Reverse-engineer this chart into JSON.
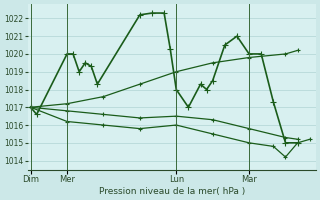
{
  "bg_color": "#cce8e8",
  "plot_bg_color": "#d8f0f0",
  "grid_color": "#b0d4d4",
  "line_color": "#1a5c1a",
  "xlabel": "Pression niveau de la mer( hPa )",
  "ylim": [
    1013.5,
    1022.8
  ],
  "yticks": [
    1014,
    1015,
    1016,
    1017,
    1018,
    1019,
    1020,
    1021,
    1022
  ],
  "day_labels": [
    "Dim",
    "Mer",
    "Lun",
    "Mar"
  ],
  "day_positions": [
    0,
    6,
    24,
    36
  ],
  "xlim": [
    -0.5,
    47
  ],
  "vlines": [
    0,
    6,
    24,
    36
  ],
  "series": [
    {
      "x": [
        0,
        1,
        6,
        7,
        8,
        9,
        10,
        11,
        18,
        20,
        22,
        23,
        24,
        26,
        28,
        29,
        30,
        32,
        34,
        36,
        38,
        40,
        42,
        44
      ],
      "y": [
        1017.0,
        1016.6,
        1020.0,
        1020.0,
        1019.0,
        1019.5,
        1019.3,
        1018.3,
        1022.2,
        1022.3,
        1022.3,
        1020.3,
        1018.0,
        1017.0,
        1018.3,
        1018.0,
        1018.5,
        1020.5,
        1021.0,
        1020.0,
        1020.0,
        1017.3,
        1015.0,
        1015.0
      ],
      "lw": 1.2,
      "ms": 3
    },
    {
      "x": [
        0,
        6,
        12,
        18,
        24,
        30,
        36,
        42,
        44
      ],
      "y": [
        1017.0,
        1017.2,
        1017.6,
        1018.3,
        1019.0,
        1019.5,
        1019.8,
        1020.0,
        1020.2
      ],
      "lw": 0.9,
      "ms": 2
    },
    {
      "x": [
        0,
        6,
        12,
        18,
        24,
        30,
        36,
        42,
        44
      ],
      "y": [
        1017.0,
        1016.8,
        1016.6,
        1016.4,
        1016.5,
        1016.3,
        1015.8,
        1015.3,
        1015.2
      ],
      "lw": 0.9,
      "ms": 2
    },
    {
      "x": [
        0,
        6,
        12,
        18,
        24,
        30,
        36,
        40,
        42,
        44,
        46
      ],
      "y": [
        1017.0,
        1016.2,
        1016.0,
        1015.8,
        1016.0,
        1015.5,
        1015.0,
        1014.8,
        1014.2,
        1015.0,
        1015.2
      ],
      "lw": 0.9,
      "ms": 2
    }
  ]
}
